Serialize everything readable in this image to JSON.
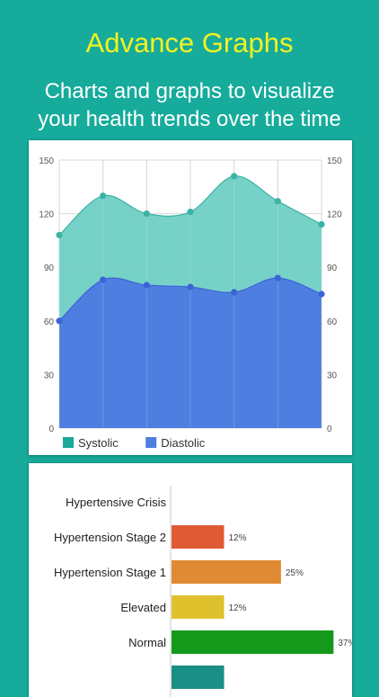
{
  "header": {
    "title": "Advance Graphs",
    "subtitle_line1": "Charts and graphs to visualize",
    "subtitle_line2": "your health trends over the time"
  },
  "colors": {
    "background": "#16ab9b",
    "title": "#f2f221",
    "systolic": "#6fcfc4",
    "systolic_line": "#3bb3a4",
    "diastolic": "#4e7fe0",
    "diastolic_point": "#3b63d6"
  },
  "chart_data": [
    {
      "type": "area",
      "title": "",
      "xlabel": "",
      "ylabel": "",
      "x": [
        1,
        2,
        3,
        4,
        5,
        6,
        7
      ],
      "ylim": [
        0,
        150
      ],
      "y_ticks": [
        "0",
        "30",
        "60",
        "90",
        "120",
        "150"
      ],
      "grid": true,
      "legend_position": "bottom-left",
      "series": [
        {
          "name": "Systolic",
          "color": "#6fcfc4",
          "values": [
            108,
            130,
            120,
            121,
            141,
            127,
            114
          ]
        },
        {
          "name": "Diastolic",
          "color": "#4e7fe0",
          "values": [
            60,
            83,
            80,
            79,
            76,
            84,
            75
          ]
        }
      ]
    },
    {
      "type": "bar",
      "orientation": "horizontal",
      "title": "",
      "categories": [
        "Hypertensive Crisis",
        "Hypertension Stage 2",
        "Hypertension Stage 1",
        "Elevated",
        "Normal",
        ""
      ],
      "values": [
        0,
        12,
        25,
        12,
        37,
        12
      ],
      "value_labels": [
        "",
        "12%",
        "25%",
        "12%",
        "37%",
        ""
      ],
      "colors": [
        "#c0392b",
        "#e05a33",
        "#e08a33",
        "#dfc12e",
        "#14991a",
        "#1a8f86"
      ]
    }
  ]
}
